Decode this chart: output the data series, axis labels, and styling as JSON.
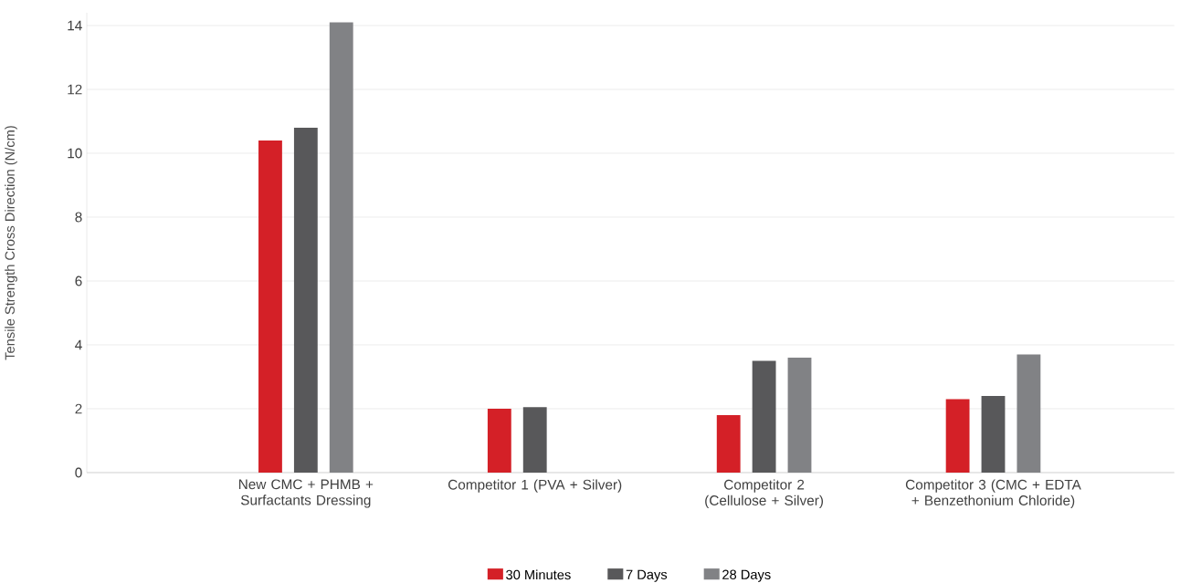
{
  "chart_data": {
    "type": "bar",
    "ylabel": "Tensile Strength Cross Direction (N/cm)",
    "categories": [
      "New CMC + PHMB + Surfactants Dressing",
      "Competitor 1 (PVA + Silver)",
      "Competitor 2 (Cellulose + Silver)",
      "Competitor 3 (CMC + EDTA + Benzethonium Chloride)"
    ],
    "series": [
      {
        "name": "30 Minutes",
        "color": "#d42027",
        "values": [
          10.4,
          2.0,
          1.8,
          2.3
        ]
      },
      {
        "name": "7 Days",
        "color": "#58585a",
        "values": [
          10.8,
          2.05,
          3.5,
          2.4
        ]
      },
      {
        "name": "28 Days",
        "color": "#818285",
        "values": [
          14.1,
          null,
          3.6,
          3.7
        ]
      }
    ],
    "ylim": [
      0,
      14.4
    ],
    "yticks": [
      0,
      2,
      4,
      6,
      8,
      10,
      12,
      14
    ],
    "grid": "y",
    "legend": "bottom"
  }
}
